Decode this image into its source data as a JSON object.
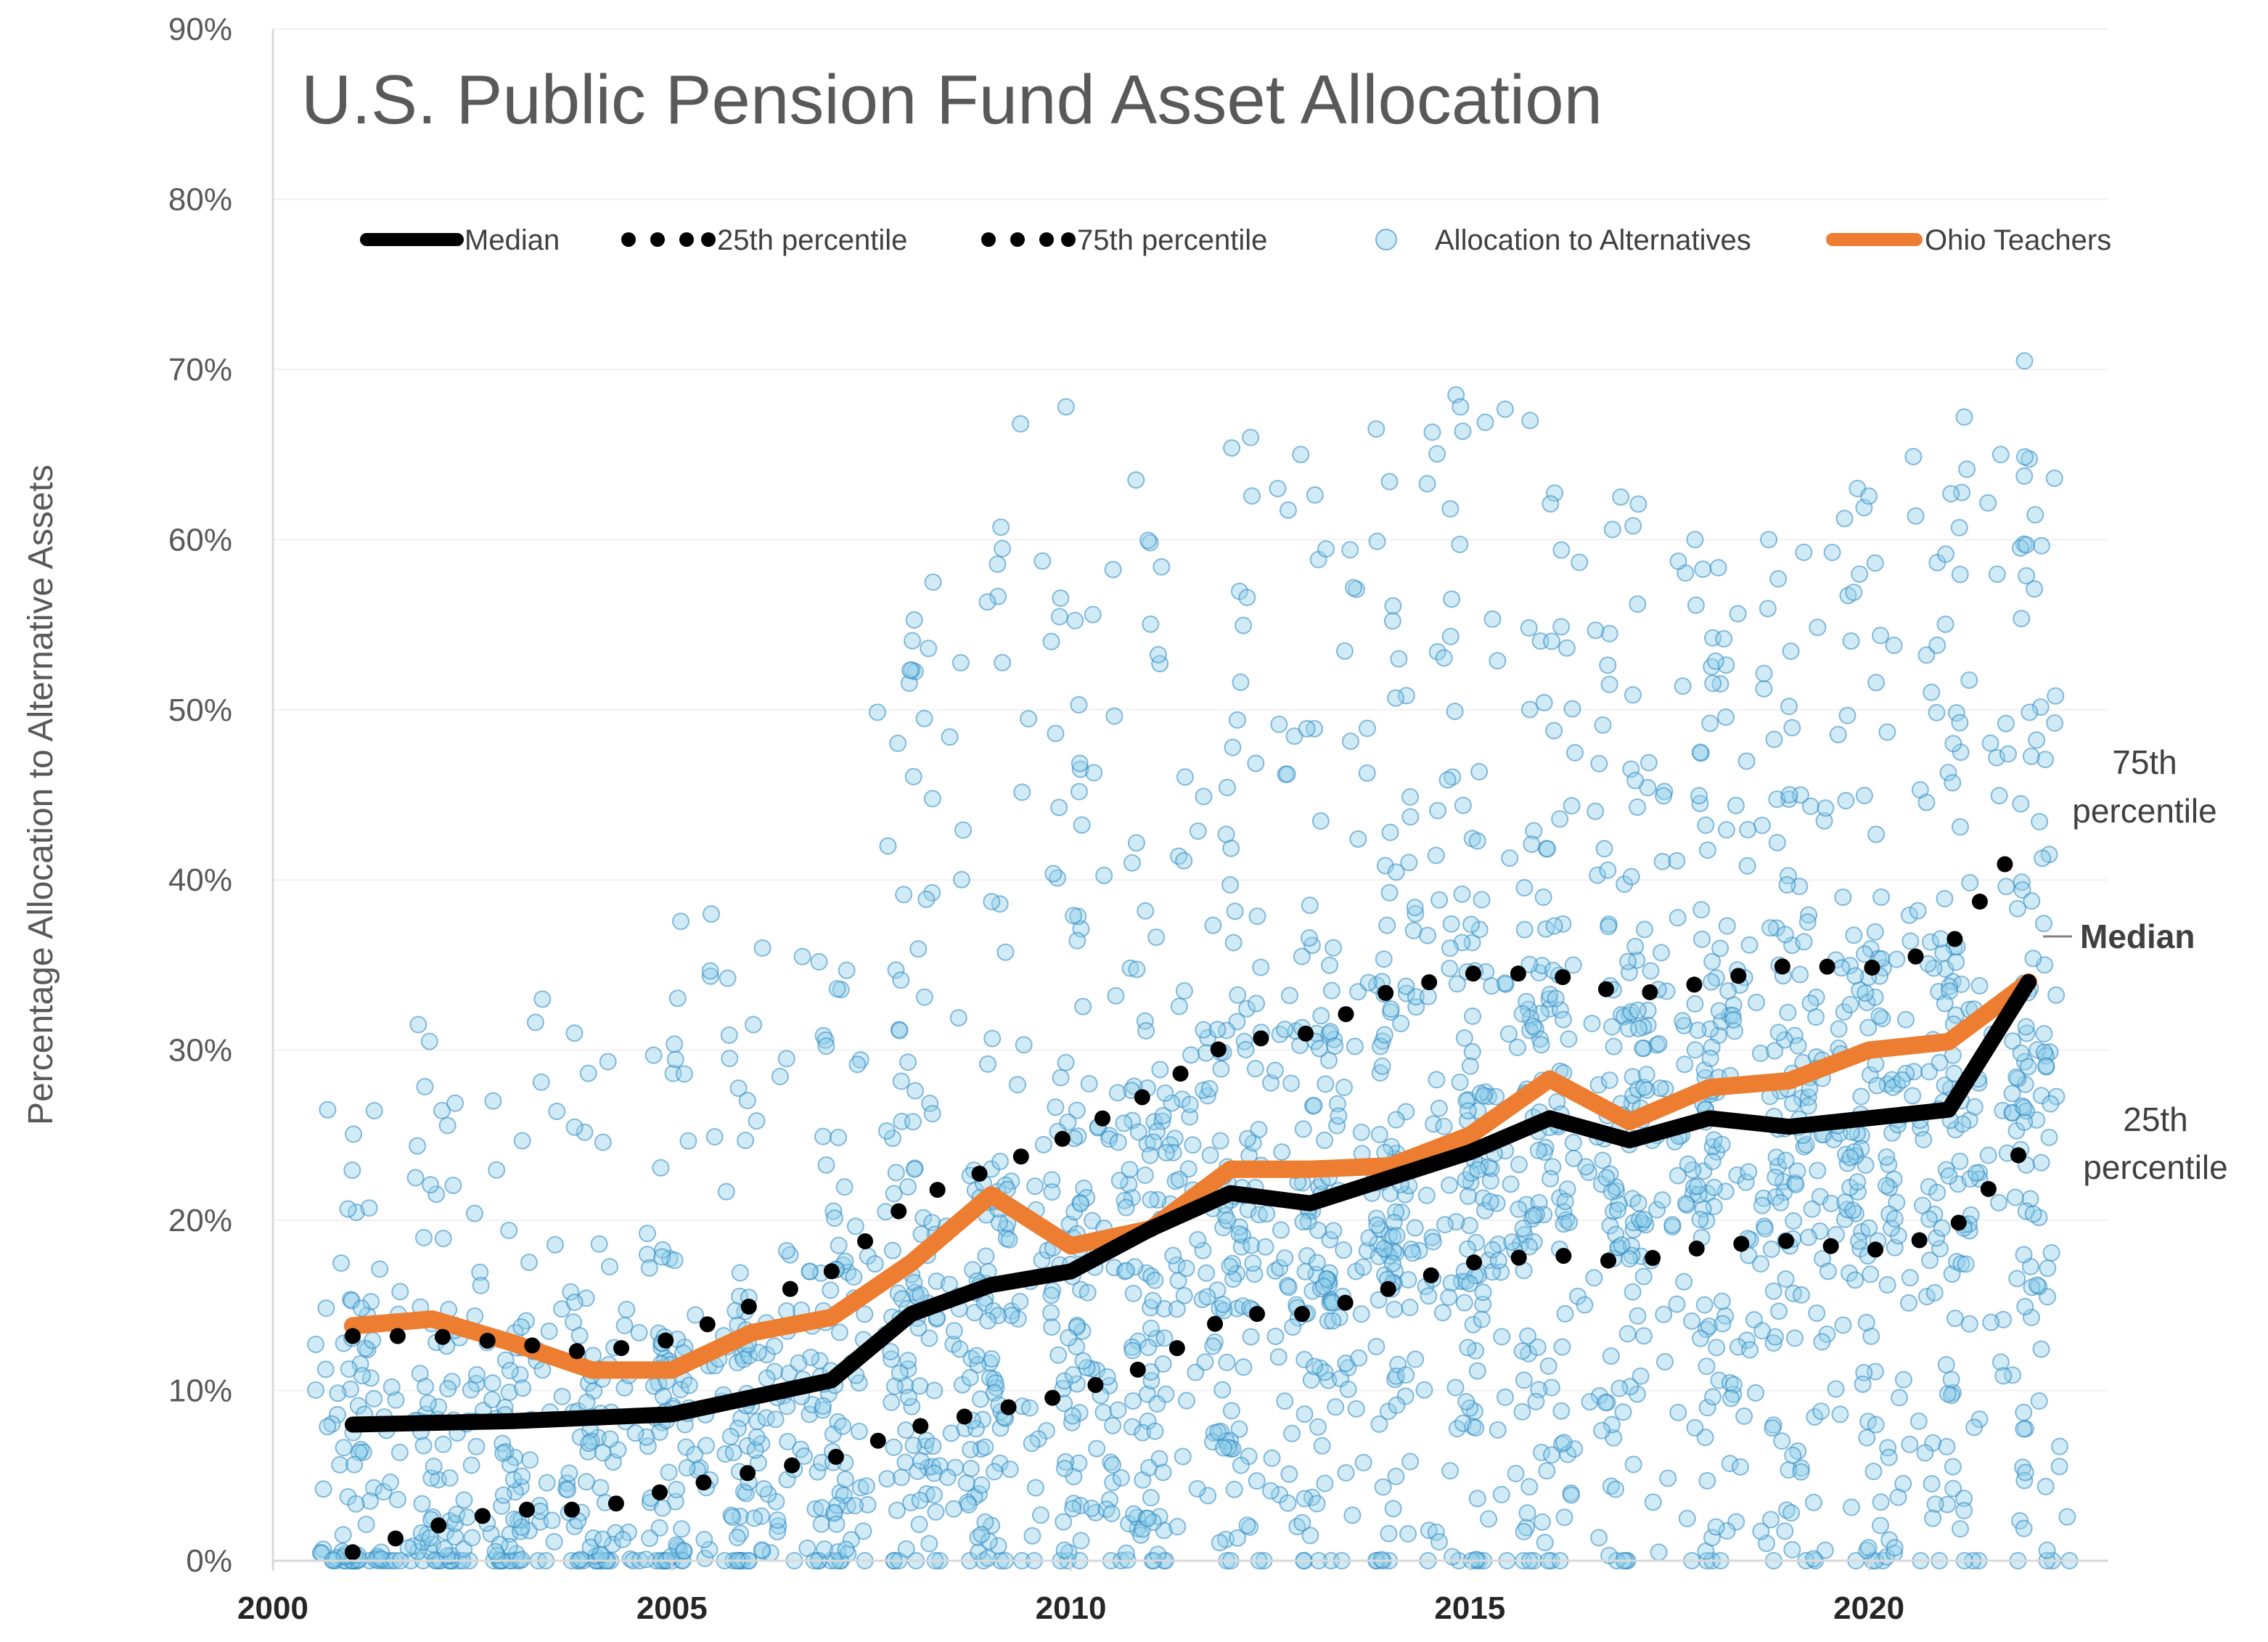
{
  "chart_data": {
    "type": "scatter",
    "title": "U.S. Public Pension Fund Asset Allocation",
    "ylabel": "Percentage Allocation to Alternative Assets",
    "xlabel": "",
    "xlim": [
      2000,
      2023
    ],
    "ylim": [
      0,
      90
    ],
    "x_ticks": [
      "2000",
      "2005",
      "2010",
      "2015",
      "2020"
    ],
    "y_ticks": [
      "0%",
      "10%",
      "20%",
      "30%",
      "40%",
      "50%",
      "60%",
      "70%",
      "80%",
      "90%"
    ],
    "grid": "horizontal",
    "legend_placement": "top",
    "legend": [
      {
        "key": "median",
        "label": "Median"
      },
      {
        "key": "p25",
        "label": "25th percentile"
      },
      {
        "key": "p75",
        "label": "75th percentile"
      },
      {
        "key": "alts",
        "label": "Allocation to Alternatives"
      },
      {
        "key": "ohio",
        "label": "Ohio Teachers"
      }
    ],
    "annotations": {
      "p75_line1": "75th",
      "p75_line2": "percentile",
      "median": "Median",
      "p25_line1": "25th",
      "p25_line2": "percentile"
    },
    "years": [
      2001,
      2002,
      2003,
      2004,
      2005,
      2006,
      2007,
      2008,
      2009,
      2010,
      2011,
      2012,
      2013,
      2014,
      2015,
      2016,
      2017,
      2018,
      2019,
      2020,
      2021,
      2022
    ],
    "series": [
      {
        "name": "Median",
        "style": "line",
        "color": "#000000",
        "values": [
          8.0,
          8.1,
          8.2,
          8.4,
          8.6,
          9.6,
          10.6,
          14.5,
          16.2,
          17.0,
          19.5,
          21.6,
          21.0,
          22.5,
          24.0,
          26.0,
          24.7,
          26.0,
          25.5,
          26.0,
          26.5,
          34.0
        ]
      },
      {
        "name": "25th percentile",
        "style": "dotted",
        "color": "#000000",
        "values": [
          0.5,
          2.0,
          3.0,
          3.0,
          4.2,
          5.2,
          6.0,
          7.8,
          8.8,
          9.8,
          11.5,
          14.5,
          14.5,
          16.0,
          17.5,
          18.0,
          17.5,
          18.5,
          18.8,
          18.2,
          19.2,
          24.5
        ]
      },
      {
        "name": "75th percentile",
        "style": "dotted",
        "color": "#000000",
        "values": [
          13.2,
          13.2,
          12.8,
          12.2,
          13.0,
          15.0,
          17.0,
          21.2,
          23.0,
          25.0,
          27.5,
          30.5,
          31.0,
          33.5,
          34.5,
          34.5,
          33.2,
          34.0,
          35.0,
          34.8,
          36.0,
          43.0
        ]
      },
      {
        "name": "Ohio Teachers",
        "style": "line",
        "color": "#ED7D31",
        "values": [
          13.8,
          14.2,
          12.8,
          11.2,
          11.2,
          13.4,
          14.3,
          17.5,
          21.5,
          18.5,
          19.5,
          23.0,
          23.0,
          23.2,
          25.0,
          28.3,
          25.8,
          27.8,
          28.2,
          30.0,
          30.5,
          34.0
        ]
      }
    ],
    "scatter": {
      "name": "Allocation to Alternatives",
      "color": "#8FCFEA",
      "edge_color": "#2E86C1",
      "points_per_year": [
        85,
        90,
        85,
        85,
        95,
        95,
        100,
        110,
        115,
        120,
        125,
        130,
        130,
        135,
        140,
        140,
        140,
        140,
        140,
        140,
        130,
        120
      ],
      "zero_counts": [
        16,
        14,
        12,
        12,
        10,
        10,
        8,
        6,
        5,
        5,
        5,
        4,
        5,
        5,
        6,
        6,
        4,
        4,
        3,
        4,
        5,
        4
      ],
      "max_values": [
        26.5,
        31.5,
        33.0,
        31.0,
        38.0,
        36.0,
        35.5,
        57.5,
        66.8,
        67.8,
        63.5,
        66.0,
        65.0,
        66.5,
        68.5,
        67.0,
        62.5,
        60.0,
        60.0,
        63.0,
        67.2,
        70.5
      ]
    }
  }
}
